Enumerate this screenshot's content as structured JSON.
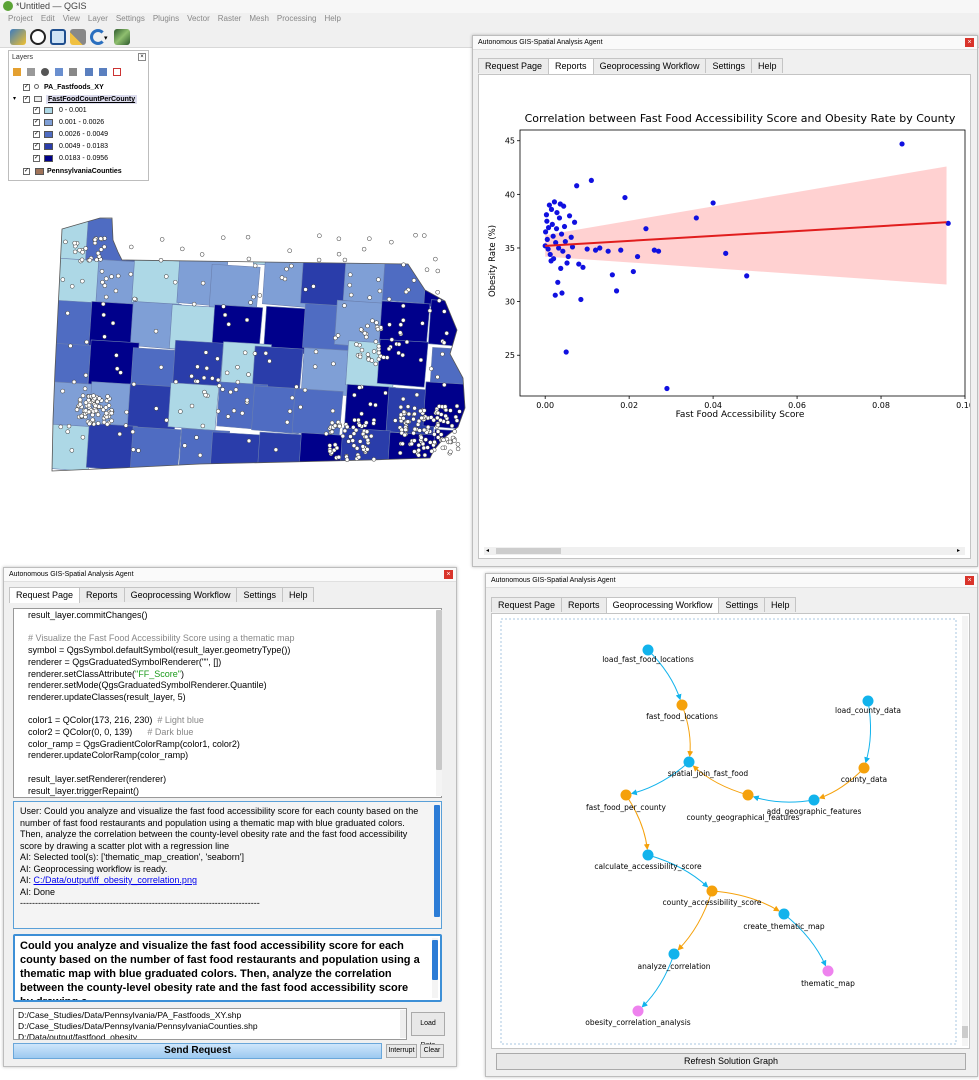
{
  "app": {
    "window_title": "*Untitled — QGIS",
    "menus": [
      "Project",
      "Edit",
      "View",
      "Layer",
      "Settings",
      "Plugins",
      "Vector",
      "Raster",
      "Mesh",
      "Processing",
      "Help"
    ]
  },
  "layers_panel": {
    "title": "Layers",
    "layers": [
      {
        "name": "PA_Fastfoods_XY",
        "checked": true
      },
      {
        "name": "FastFoodCountPerCounty",
        "checked": true
      },
      {
        "name": "PennsylvaniaCounties",
        "checked": true
      }
    ],
    "classes": [
      {
        "label": "0 - 0.001",
        "color": "#add8e6"
      },
      {
        "label": "0.001 - 0.0026",
        "color": "#7f9fd6"
      },
      {
        "label": "0.0026 - 0.0049",
        "color": "#4f6cc2"
      },
      {
        "label": "0.0049 - 0.0183",
        "color": "#2a3daa"
      },
      {
        "label": "0.0183 - 0.0956",
        "color": "#00008b"
      }
    ],
    "counties_swatch_color": "#a0745a"
  },
  "agent_title": "Autonomous GIS-Spatial Analysis Agent",
  "tabs": [
    "Request Page",
    "Reports",
    "Geoprocessing Workflow",
    "Settings",
    "Help"
  ],
  "code_lines": [
    "result_layer.commitChanges()",
    "",
    "# Visualize the Fast Food Accessibility Score using a thematic map",
    "symbol = QgsSymbol.defaultSymbol(result_layer.geometryType())",
    "renderer = QgsGraduatedSymbolRenderer(\"\", [])",
    "renderer.setClassAttribute(\"FF_Score\")",
    "renderer.setMode(QgsGraduatedSymbolRenderer.Quantile)",
    "renderer.updateClasses(result_layer, 5)",
    "",
    "color1 = QColor(173, 216, 230)  # Light blue",
    "color2 = QColor(0, 0, 139)      # Dark blue",
    "color_ramp = QgsGradientColorRamp(color1, color2)",
    "renderer.updateColorRamp(color_ramp)",
    "",
    "result_layer.setRenderer(renderer)",
    "result_layer.triggerRepaint()"
  ],
  "chat": {
    "user": "User: Could you analyze and visualize the fast food accessibility score for each county based on the number of fast food restaurants and population using a thematic map with blue graduated colors. Then, analyze the correlation between the county-level obesity rate and the fast food accessibility score by drawing a scatter plot with a regression line",
    "tools": "AI: Selected tool(s): ['thematic_map_creation', 'seaborn']",
    "ready": "AI: Geoprocessing workflow is ready.",
    "ai_prefix": "AI: ",
    "link": "C:/Data/output\\ff_obesity_correlation.png",
    "done": "AI: Done",
    "divider": "--------------------------------------------------------------------------------"
  },
  "request_text": "Could you analyze and visualize the fast food accessibility score for each county based on the number of fast food restaurants and population using a thematic map with blue graduated colors. Then, analyze the correlation between the county-level obesity rate and the fast food accessibility score by drawing a",
  "files": [
    "D:/Case_Studies/Data/Pennsylvania/PA_Fastfoods_XY.shp",
    "D:/Case_Studies/Data/Pennsylvania/PennsylvaniaCounties.shp",
    "D:/Data/output/fastfood_obesity..."
  ],
  "buttons": {
    "load_data": "Load Data",
    "send": "Send Request",
    "interrupt": "Interrupt",
    "clear": "Clear",
    "refresh": "Refresh Solution Graph"
  },
  "chart_data": {
    "type": "scatter",
    "title": "Correlation between Fast Food Accessibility Score and Obesity Rate by County",
    "xlabel": "Fast Food Accessibility Score",
    "ylabel": "Obesity Rate (%)",
    "xlim": [
      -0.006,
      0.1
    ],
    "ylim": [
      21.2,
      46.0
    ],
    "xticks": [
      0.0,
      0.02,
      0.04,
      0.06,
      0.08,
      0.1
    ],
    "xtick_labels": [
      "0.00",
      "0.02",
      "0.04",
      "0.06",
      "0.08",
      "0.10"
    ],
    "yticks": [
      25,
      30,
      35,
      40,
      45
    ],
    "regression": {
      "x": [
        0.0,
        0.0956
      ],
      "y": [
        35.2,
        37.4
      ]
    },
    "ci_band": {
      "x": [
        0.0,
        0.0956
      ],
      "upper": [
        36.2,
        42.6
      ],
      "lower": [
        34.2,
        31.6
      ]
    },
    "point_color": "#1010e0",
    "line_color": "#e11d1d",
    "band_color": "#ffb3b3",
    "points": [
      [
        0.0,
        35.2
      ],
      [
        0.0001,
        36.5
      ],
      [
        0.0003,
        38.1
      ],
      [
        0.0004,
        37.5
      ],
      [
        0.0005,
        35.8
      ],
      [
        0.0007,
        34.9
      ],
      [
        0.0008,
        36.9
      ],
      [
        0.001,
        39.0
      ],
      [
        0.0012,
        34.4
      ],
      [
        0.0014,
        33.8
      ],
      [
        0.0015,
        38.6
      ],
      [
        0.0017,
        37.2
      ],
      [
        0.0019,
        36.1
      ],
      [
        0.002,
        34.0
      ],
      [
        0.0022,
        39.3
      ],
      [
        0.0024,
        30.6
      ],
      [
        0.0025,
        35.5
      ],
      [
        0.0027,
        36.8
      ],
      [
        0.0028,
        38.3
      ],
      [
        0.003,
        31.8
      ],
      [
        0.0032,
        35.0
      ],
      [
        0.0034,
        37.8
      ],
      [
        0.0036,
        39.1
      ],
      [
        0.0037,
        33.1
      ],
      [
        0.0039,
        36.3
      ],
      [
        0.004,
        30.8
      ],
      [
        0.0042,
        34.7
      ],
      [
        0.0044,
        38.9
      ],
      [
        0.0046,
        37.0
      ],
      [
        0.0048,
        35.6
      ],
      [
        0.005,
        25.3
      ],
      [
        0.0052,
        33.6
      ],
      [
        0.0055,
        34.2
      ],
      [
        0.0058,
        38.0
      ],
      [
        0.0062,
        36.0
      ],
      [
        0.0065,
        35.1
      ],
      [
        0.007,
        37.4
      ],
      [
        0.0075,
        40.8
      ],
      [
        0.008,
        33.5
      ],
      [
        0.0085,
        30.2
      ],
      [
        0.009,
        33.2
      ],
      [
        0.01,
        34.9
      ],
      [
        0.011,
        41.3
      ],
      [
        0.012,
        34.8
      ],
      [
        0.013,
        35.0
      ],
      [
        0.015,
        34.7
      ],
      [
        0.016,
        32.5
      ],
      [
        0.017,
        31.0
      ],
      [
        0.018,
        34.8
      ],
      [
        0.019,
        39.7
      ],
      [
        0.021,
        32.8
      ],
      [
        0.022,
        34.2
      ],
      [
        0.024,
        36.8
      ],
      [
        0.026,
        34.8
      ],
      [
        0.027,
        34.7
      ],
      [
        0.029,
        21.9
      ],
      [
        0.036,
        37.8
      ],
      [
        0.04,
        39.2
      ],
      [
        0.043,
        34.5
      ],
      [
        0.048,
        32.4
      ],
      [
        0.085,
        44.7
      ],
      [
        0.096,
        37.3
      ]
    ]
  },
  "workflow": {
    "nodes": [
      {
        "id": "load_fast_food_locations",
        "type": "op"
      },
      {
        "id": "fast_food_locations",
        "type": "data"
      },
      {
        "id": "load_county_data",
        "type": "op"
      },
      {
        "id": "county_data",
        "type": "data"
      },
      {
        "id": "spatial_join_fast_food",
        "type": "op"
      },
      {
        "id": "add_geographic_features",
        "type": "op"
      },
      {
        "id": "county_geographical_features",
        "type": "data"
      },
      {
        "id": "fast_food_per_county",
        "type": "data"
      },
      {
        "id": "calculate_accessibility_score",
        "type": "op"
      },
      {
        "id": "county_accessibility_score",
        "type": "data"
      },
      {
        "id": "create_thematic_map",
        "type": "op"
      },
      {
        "id": "thematic_map",
        "type": "output"
      },
      {
        "id": "analyze_correlation",
        "type": "op"
      },
      {
        "id": "obesity_correlation_analysis",
        "type": "output"
      }
    ],
    "colors": {
      "op": "#12b3ec",
      "data": "#f5a10b",
      "output": "#ee82ee",
      "edge_op": "#12b3ec",
      "edge_data": "#f5a10b"
    }
  }
}
